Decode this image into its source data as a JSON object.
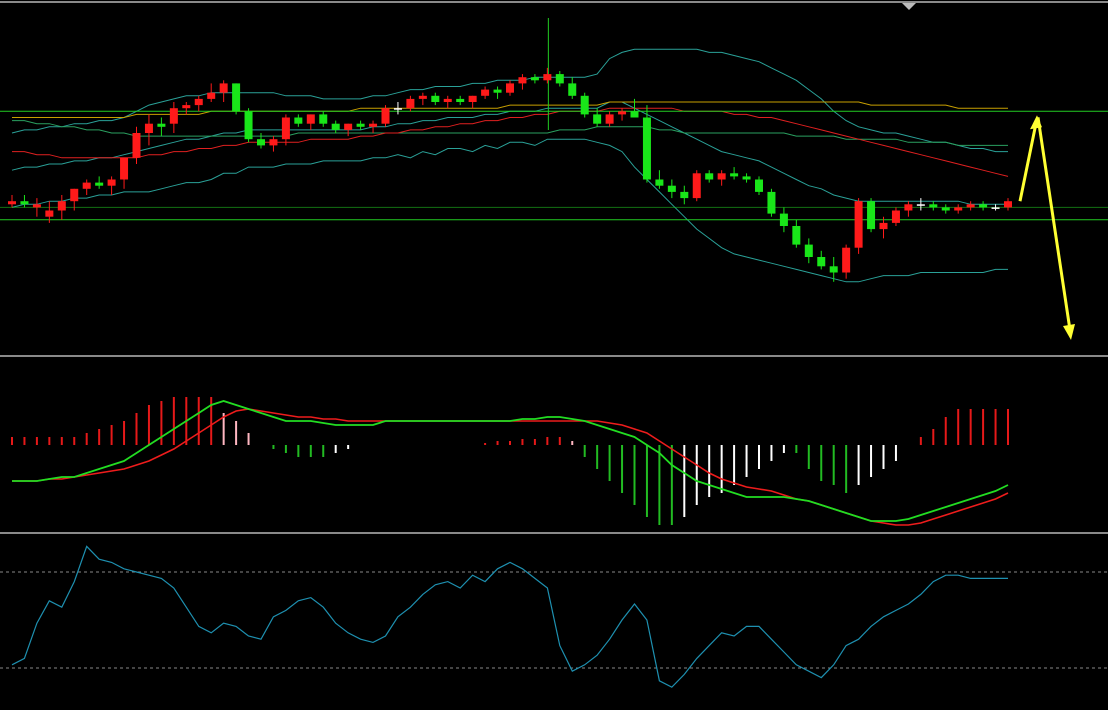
{
  "colors": {
    "background": "#000000",
    "up_candle": "#ff1a1a",
    "down_candle": "#19e619",
    "doji_candle": "#ffffff",
    "bollinger": "#2aa198",
    "ma_red": "#e02020",
    "ma_green": "#2aa060",
    "ma_yellow": "#c8a000",
    "h_line": "#22cc22",
    "annotation_arrow": "#ffff33",
    "dif_line": "#22dd22",
    "dea_line": "#ee1c1c",
    "macd_pos": "#e61919",
    "macd_pos_weak": "#ffb6c1",
    "macd_neg": "#22bb22",
    "macd_neg_weak": "#ffffff",
    "osc_line": "#1e90b0",
    "osc_ref": "#888888",
    "pane_separator": "#8a8a8a"
  },
  "chart_data": [
    {
      "type": "candlestick",
      "panel": "price",
      "ylim": [
        0,
        100
      ],
      "candles": [
        [
          47,
          50,
          46,
          48
        ],
        [
          48,
          50,
          46,
          47
        ],
        [
          46,
          49,
          43,
          47
        ],
        [
          43,
          48,
          41,
          45
        ],
        [
          45,
          50,
          42,
          48
        ],
        [
          48,
          52,
          45,
          52
        ],
        [
          52,
          55,
          50,
          54
        ],
        [
          54,
          56,
          52,
          53
        ],
        [
          53,
          56,
          50,
          55
        ],
        [
          55,
          62,
          52,
          62
        ],
        [
          62,
          72,
          60,
          70
        ],
        [
          70,
          76,
          66,
          73
        ],
        [
          73,
          75,
          69,
          72
        ],
        [
          73,
          80,
          70,
          78
        ],
        [
          78,
          80,
          76,
          79
        ],
        [
          79,
          82,
          77,
          81
        ],
        [
          81,
          86,
          80,
          83
        ],
        [
          83,
          87,
          80,
          86
        ],
        [
          86,
          86,
          76,
          77
        ],
        [
          77,
          78,
          67,
          68
        ],
        [
          68,
          70,
          65,
          66
        ],
        [
          66,
          69,
          64,
          68
        ],
        [
          68,
          76,
          66,
          75
        ],
        [
          75,
          76,
          72,
          73
        ],
        [
          73,
          76,
          71,
          76
        ],
        [
          76,
          77,
          72,
          73
        ],
        [
          73,
          74,
          70,
          71
        ],
        [
          71,
          73,
          69,
          73
        ],
        [
          73,
          74,
          71,
          72
        ],
        [
          72,
          74,
          70,
          73
        ],
        [
          73,
          79,
          72,
          78
        ],
        [
          78,
          80,
          76,
          78
        ],
        [
          78,
          82,
          77,
          81
        ],
        [
          81,
          83,
          79,
          82
        ],
        [
          82,
          83,
          79,
          80
        ],
        [
          80,
          82,
          78,
          81
        ],
        [
          81,
          82,
          79,
          80
        ],
        [
          80,
          82,
          78,
          82
        ],
        [
          82,
          85,
          81,
          84
        ],
        [
          84,
          85,
          81,
          83
        ],
        [
          83,
          87,
          82,
          86
        ],
        [
          86,
          89,
          84,
          88
        ],
        [
          88,
          89,
          86,
          87
        ],
        [
          87,
          91,
          86,
          89
        ],
        [
          89,
          90,
          85,
          86
        ],
        [
          86,
          88,
          81,
          82
        ],
        [
          82,
          83,
          75,
          76
        ],
        [
          76,
          78,
          72,
          73
        ],
        [
          73,
          77,
          72,
          76
        ],
        [
          76,
          78,
          74,
          77
        ],
        [
          77,
          81,
          76,
          75
        ],
        [
          75,
          79,
          54,
          55
        ],
        [
          55,
          58,
          52,
          53
        ],
        [
          53,
          55,
          49,
          51
        ],
        [
          51,
          53,
          47,
          49
        ],
        [
          49,
          58,
          48,
          57
        ],
        [
          57,
          58,
          54,
          55
        ],
        [
          55,
          58,
          53,
          57
        ],
        [
          57,
          59,
          55,
          56
        ],
        [
          56,
          57,
          54,
          55
        ],
        [
          55,
          56,
          50,
          51
        ],
        [
          51,
          52,
          43,
          44
        ],
        [
          44,
          46,
          38,
          40
        ],
        [
          40,
          42,
          33,
          34
        ],
        [
          34,
          36,
          28,
          30
        ],
        [
          30,
          32,
          26,
          27
        ],
        [
          27,
          30,
          22,
          25
        ],
        [
          25,
          34,
          23,
          33
        ],
        [
          33,
          49,
          31,
          48
        ],
        [
          48,
          49,
          38,
          39
        ],
        [
          39,
          43,
          36,
          41
        ],
        [
          41,
          46,
          40,
          45
        ],
        [
          45,
          48,
          43,
          47
        ],
        [
          47,
          49,
          45,
          47
        ],
        [
          47,
          48,
          45,
          46
        ],
        [
          46,
          47,
          44,
          45
        ],
        [
          45,
          47,
          44,
          46
        ],
        [
          46,
          48,
          45,
          47
        ],
        [
          47,
          48,
          45,
          46
        ],
        [
          46,
          47,
          45,
          46
        ],
        [
          46,
          49,
          45,
          48
        ]
      ],
      "bollinger_upper": [
        70,
        71,
        71,
        72,
        72,
        73,
        73,
        74,
        74,
        75,
        77,
        79,
        80,
        81,
        82,
        82,
        83,
        83,
        83,
        83,
        83,
        83,
        82,
        82,
        82,
        81,
        81,
        81,
        81,
        82,
        82,
        83,
        84,
        84,
        85,
        85,
        85,
        86,
        86,
        87,
        87,
        87,
        88,
        88,
        88,
        88,
        88,
        89,
        94,
        96,
        97,
        97,
        97,
        97,
        97,
        97,
        96,
        96,
        95,
        94,
        93,
        91,
        89,
        87,
        84,
        81,
        77,
        74,
        72,
        71,
        70,
        70,
        69,
        68,
        67,
        67,
        66,
        65,
        65,
        64,
        64
      ],
      "bollinger_mid": [
        58,
        59,
        59,
        60,
        60,
        61,
        61,
        62,
        62,
        63,
        64,
        65,
        66,
        67,
        68,
        68,
        69,
        70,
        70,
        71,
        71,
        71,
        71,
        71,
        71,
        71,
        71,
        71,
        71,
        72,
        72,
        73,
        73,
        74,
        74,
        75,
        75,
        75,
        76,
        76,
        77,
        77,
        77,
        78,
        78,
        78,
        78,
        78,
        80,
        80,
        78,
        76,
        74,
        72,
        70,
        68,
        66,
        64,
        63,
        62,
        61,
        59,
        57,
        55,
        53,
        52,
        50,
        49,
        48,
        48,
        48,
        48,
        48,
        48,
        48,
        48,
        48,
        47,
        47,
        47,
        47
      ],
      "bollinger_lower": [
        46,
        47,
        47,
        48,
        48,
        49,
        49,
        50,
        50,
        51,
        51,
        51,
        52,
        53,
        54,
        54,
        55,
        57,
        57,
        59,
        59,
        59,
        60,
        60,
        60,
        61,
        61,
        61,
        61,
        62,
        62,
        63,
        62,
        64,
        63,
        65,
        65,
        64,
        66,
        65,
        67,
        67,
        66,
        68,
        68,
        68,
        68,
        67,
        66,
        64,
        59,
        55,
        51,
        47,
        43,
        39,
        36,
        33,
        31,
        30,
        29,
        28,
        27,
        26,
        25,
        24,
        23,
        22,
        22,
        23,
        24,
        24,
        24,
        25,
        25,
        25,
        25,
        25,
        25,
        26,
        26
      ],
      "ma_red": [
        64,
        64,
        63,
        63,
        62,
        62,
        62,
        62,
        62,
        62,
        62,
        63,
        63,
        64,
        64,
        65,
        65,
        66,
        66,
        67,
        67,
        67,
        67,
        67,
        68,
        68,
        68,
        68,
        69,
        69,
        70,
        70,
        71,
        71,
        72,
        72,
        73,
        73,
        74,
        74,
        75,
        75,
        76,
        76,
        77,
        77,
        77,
        77,
        78,
        78,
        78,
        78,
        78,
        78,
        77,
        77,
        77,
        77,
        76,
        76,
        75,
        75,
        74,
        73,
        72,
        71,
        70,
        69,
        68,
        67,
        66,
        65,
        64,
        63,
        62,
        61,
        60,
        59,
        58,
        57,
        56
      ],
      "ma_green": [
        74,
        74,
        73,
        73,
        72,
        72,
        71,
        71,
        70,
        70,
        69,
        69,
        69,
        69,
        69,
        69,
        69,
        69,
        69,
        69,
        69,
        69,
        69,
        70,
        70,
        70,
        70,
        70,
        70,
        70,
        70,
        70,
        70,
        70,
        70,
        70,
        70,
        70,
        70,
        70,
        70,
        70,
        70,
        70,
        71,
        71,
        71,
        72,
        72,
        72,
        72,
        72,
        71,
        71,
        70,
        70,
        70,
        70,
        70,
        70,
        70,
        70,
        70,
        69,
        69,
        69,
        69,
        68,
        68,
        68,
        68,
        68,
        67,
        67,
        67,
        67,
        66,
        66,
        66,
        66,
        66
      ],
      "ma_yellow": [
        75,
        75,
        75,
        75,
        75,
        75,
        75,
        75,
        75,
        75,
        76,
        76,
        76,
        76,
        76,
        76,
        77,
        77,
        77,
        77,
        77,
        77,
        77,
        77,
        77,
        77,
        77,
        77,
        78,
        78,
        78,
        78,
        78,
        78,
        78,
        78,
        78,
        78,
        78,
        78,
        79,
        79,
        79,
        79,
        79,
        79,
        79,
        79,
        80,
        80,
        80,
        80,
        80,
        80,
        80,
        80,
        80,
        80,
        80,
        80,
        80,
        80,
        80,
        80,
        80,
        80,
        80,
        80,
        80,
        79,
        79,
        79,
        79,
        79,
        79,
        79,
        78,
        78,
        78,
        78,
        78
      ],
      "horizontal_lines": [
        77,
        46,
        42
      ],
      "annotations": [
        "up-arrow",
        "down-arrow"
      ]
    },
    {
      "type": "bar+line",
      "panel": "macd",
      "ylim": [
        -40,
        40
      ],
      "histogram": [
        4,
        4,
        4,
        4,
        4,
        4,
        6,
        8,
        10,
        12,
        16,
        20,
        22,
        24,
        24,
        24,
        24,
        16,
        12,
        6,
        0,
        -2,
        -4,
        -6,
        -6,
        -6,
        -4,
        -2,
        0,
        0,
        0,
        0,
        0,
        0,
        0,
        0,
        0,
        0,
        1,
        2,
        2,
        3,
        3,
        4,
        4,
        2,
        -6,
        -12,
        -18,
        -24,
        -30,
        -36,
        -40,
        -40,
        -36,
        -30,
        -26,
        -24,
        -20,
        -16,
        -12,
        -8,
        -4,
        -4,
        -12,
        -18,
        -20,
        -24,
        -20,
        -16,
        -12,
        -8,
        0,
        4,
        8,
        14,
        18,
        18,
        18,
        18,
        18
      ],
      "dif": [
        -18,
        -18,
        -18,
        -17,
        -16,
        -16,
        -14,
        -12,
        -10,
        -8,
        -4,
        0,
        4,
        8,
        12,
        16,
        20,
        22,
        20,
        18,
        16,
        14,
        12,
        12,
        12,
        11,
        10,
        10,
        10,
        10,
        12,
        12,
        12,
        12,
        12,
        12,
        12,
        12,
        12,
        12,
        12,
        13,
        13,
        14,
        14,
        13,
        12,
        10,
        8,
        6,
        4,
        0,
        -4,
        -10,
        -14,
        -18,
        -20,
        -22,
        -24,
        -26,
        -26,
        -26,
        -26,
        -27,
        -28,
        -30,
        -32,
        -34,
        -36,
        -38,
        -38,
        -38,
        -37,
        -35,
        -33,
        -31,
        -29,
        -27,
        -25,
        -23,
        -20
      ],
      "dea": [
        -18,
        -18,
        -18,
        -17,
        -17,
        -16,
        -15,
        -14,
        -13,
        -12,
        -10,
        -8,
        -5,
        -2,
        2,
        6,
        10,
        14,
        17,
        18,
        17,
        16,
        15,
        14,
        14,
        13,
        13,
        12,
        12,
        12,
        12,
        12,
        12,
        12,
        12,
        12,
        12,
        12,
        12,
        12,
        12,
        12,
        12,
        12,
        12,
        12,
        12,
        12,
        11,
        10,
        8,
        6,
        2,
        -2,
        -6,
        -10,
        -14,
        -17,
        -19,
        -21,
        -22,
        -23,
        -25,
        -27,
        -28,
        -30,
        -32,
        -34,
        -36,
        -38,
        -39,
        -40,
        -40,
        -39,
        -37,
        -35,
        -33,
        -31,
        -29,
        -27,
        -24
      ]
    },
    {
      "type": "line",
      "panel": "oscillator",
      "ylim": [
        0,
        100
      ],
      "reference_lines": [
        80,
        20
      ],
      "values": [
        22,
        26,
        48,
        62,
        58,
        74,
        96,
        88,
        86,
        82,
        80,
        78,
        76,
        70,
        58,
        46,
        42,
        48,
        46,
        40,
        38,
        52,
        56,
        62,
        64,
        58,
        48,
        42,
        38,
        36,
        40,
        52,
        58,
        66,
        72,
        74,
        70,
        78,
        74,
        82,
        86,
        82,
        76,
        70,
        34,
        18,
        22,
        28,
        38,
        50,
        60,
        50,
        12,
        8,
        16,
        26,
        34,
        42,
        40,
        46,
        46,
        38,
        30,
        22,
        18,
        14,
        22,
        34,
        38,
        46,
        52,
        56,
        60,
        66,
        74,
        78,
        78,
        76,
        76,
        76,
        76
      ]
    }
  ]
}
